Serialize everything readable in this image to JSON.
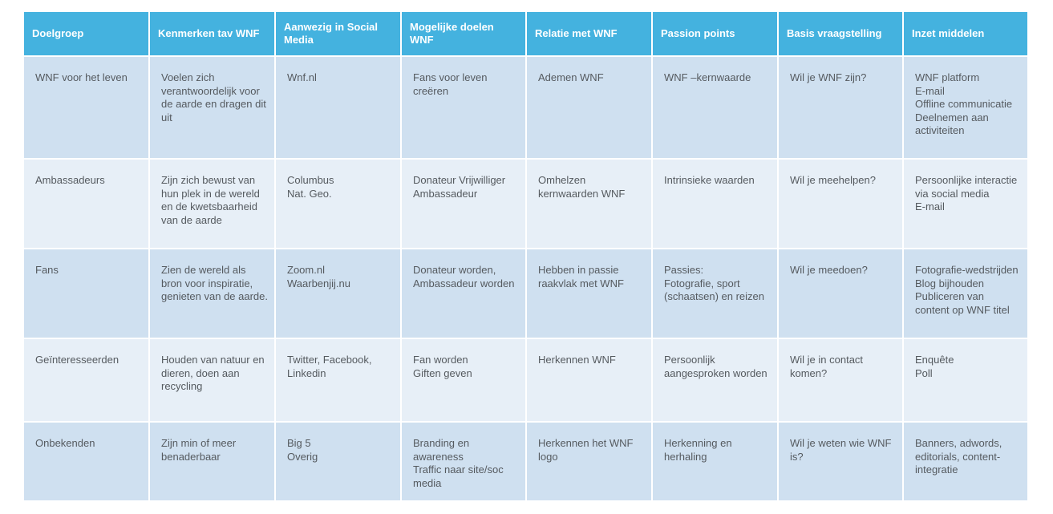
{
  "colors": {
    "header_bg": "#44b2df",
    "row_dark": "#cfe0f0",
    "row_light": "#e7eff7",
    "text": "#555a5f"
  },
  "headers": [
    "Doelgroep",
    "Kenmerken  tav WNF",
    "Aanwezig in Social Media",
    "Mogelijke doelen WNF",
    "Relatie met WNF",
    "Passion points",
    "Basis vraagstelling",
    "Inzet middelen"
  ],
  "rows": [
    [
      "WNF voor het leven",
      "Voelen zich verantwoordelijk voor de aarde en dragen dit uit",
      "Wnf.nl",
      "Fans voor leven creëren",
      "Ademen  WNF",
      "WNF –kernwaarde",
      "Wil je WNF zijn?",
      "WNF platform\nE-mail\nOffline communicatie\nDeelnemen aan activiteiten"
    ],
    [
      "Ambassadeurs",
      "Zijn zich bewust van hun plek in de wereld en de kwetsbaarheid van de aarde",
      "Columbus\nNat. Geo.",
      "Donateur  Vrijwilliger Ambassadeur",
      "Omhelzen kernwaarden WNF",
      "Intrinsieke waarden",
      "Wil je meehelpen?",
      "Persoonlijke interactie via social media\nE-mail"
    ],
    [
      "Fans",
      "Zien de wereld als bron voor inspiratie, genieten  van de aarde.",
      "Zoom.nl\nWaarbenjij.nu",
      "Donateur  worden, Ambassadeur worden",
      "Hebben  in passie raakvlak met WNF",
      "Passies:\nFotografie, sport (schaatsen) en reizen",
      "Wil je meedoen?",
      "Fotografie-wedstrijden\nBlog bijhouden\nPubliceren van content op WNF titel"
    ],
    [
      "Geïnteresseerden",
      "Houden van natuur en dieren, doen aan recycling",
      "Twitter, Facebook, Linkedin",
      "Fan worden\nGiften geven",
      "Herkennen  WNF",
      "Persoonlijk aangesproken worden",
      "Wil je in contact komen?",
      "Enquête\nPoll"
    ],
    [
      "Onbekenden",
      "Zijn min  of meer benaderbaar",
      "Big 5\nOverig",
      "Branding  en awareness\nTraffic naar   site/soc media",
      "Herkennen  het WNF logo",
      "Herkenning  en herhaling",
      "Wil je weten wie WNF is?",
      "Banners, adwords, editorials, content-integratie"
    ]
  ]
}
